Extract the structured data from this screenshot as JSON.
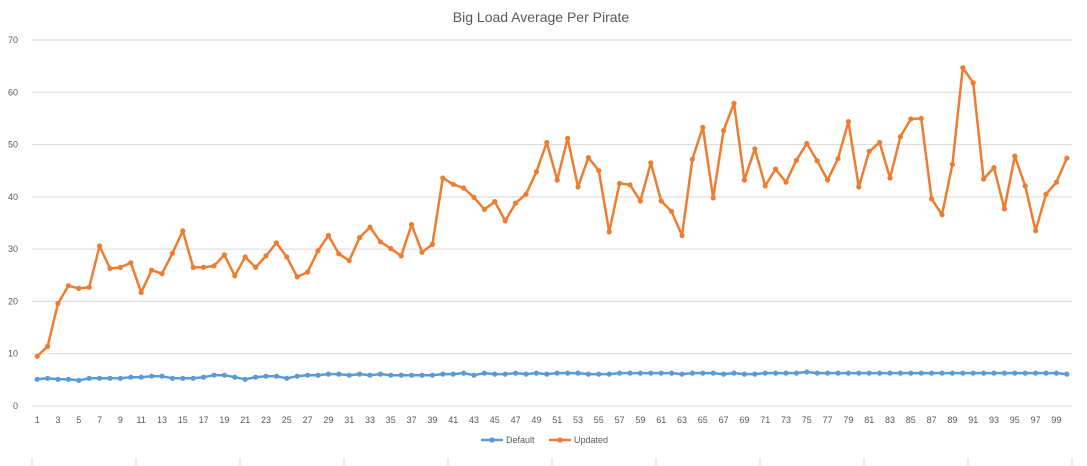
{
  "chart_data": {
    "type": "line",
    "title": "Big Load Average Per Pirate",
    "xlabel": "",
    "ylabel": "",
    "ylim": [
      0,
      70
    ],
    "yticks": [
      0,
      10,
      20,
      30,
      40,
      50,
      60,
      70
    ],
    "x_start": 1,
    "x_end": 100,
    "x_tick_labels": [
      "1",
      "3",
      "5",
      "7",
      "9",
      "11",
      "13",
      "15",
      "17",
      "19",
      "21",
      "23",
      "25",
      "27",
      "29",
      "31",
      "33",
      "35",
      "37",
      "39",
      "41",
      "43",
      "45",
      "47",
      "49",
      "51",
      "53",
      "55",
      "57",
      "59",
      "61",
      "63",
      "65",
      "67",
      "69",
      "71",
      "73",
      "75",
      "77",
      "79",
      "81",
      "83",
      "85",
      "87",
      "89",
      "91",
      "93",
      "95",
      "97",
      "99"
    ],
    "grid": true,
    "legend_position": "bottom",
    "series": [
      {
        "name": "Default",
        "color": "#5b9bd5",
        "values": [
          5.1,
          5.3,
          5.1,
          5.1,
          4.9,
          5.3,
          5.3,
          5.3,
          5.3,
          5.5,
          5.5,
          5.7,
          5.7,
          5.3,
          5.3,
          5.3,
          5.5,
          5.9,
          5.9,
          5.5,
          5.1,
          5.5,
          5.7,
          5.7,
          5.3,
          5.7,
          5.9,
          5.9,
          6.1,
          6.1,
          5.9,
          6.1,
          5.9,
          6.1,
          5.9,
          5.9,
          5.9,
          5.9,
          5.9,
          6.1,
          6.1,
          6.3,
          5.9,
          6.3,
          6.1,
          6.1,
          6.3,
          6.1,
          6.3,
          6.1,
          6.3,
          6.3,
          6.3,
          6.1,
          6.1,
          6.1,
          6.3,
          6.3,
          6.3,
          6.3,
          6.3,
          6.3,
          6.1,
          6.3,
          6.3,
          6.3,
          6.1,
          6.3,
          6.1,
          6.1,
          6.3,
          6.3,
          6.3,
          6.3,
          6.5,
          6.3,
          6.3,
          6.3,
          6.3,
          6.3,
          6.3,
          6.3,
          6.3,
          6.3,
          6.3,
          6.3,
          6.3,
          6.3,
          6.3,
          6.3,
          6.3,
          6.3,
          6.3,
          6.3,
          6.3,
          6.3,
          6.3,
          6.3,
          6.3,
          6.1
        ]
      },
      {
        "name": "Updated",
        "color": "#ed7d31",
        "values": [
          9.5,
          11.4,
          19.6,
          23.0,
          22.5,
          22.7,
          30.6,
          26.3,
          26.5,
          27.4,
          21.7,
          26.0,
          25.3,
          29.2,
          33.5,
          26.5,
          26.5,
          26.8,
          28.9,
          24.9,
          28.5,
          26.5,
          28.7,
          31.2,
          28.5,
          24.7,
          25.6,
          29.7,
          32.6,
          29.1,
          27.8,
          32.2,
          34.2,
          31.4,
          30.1,
          28.7,
          34.7,
          29.4,
          30.9,
          43.6,
          42.4,
          41.7,
          39.9,
          37.6,
          39.1,
          35.4,
          38.8,
          40.5,
          44.8,
          50.4,
          43.2,
          51.2,
          41.9,
          47.5,
          45.0,
          33.3,
          42.6,
          42.3,
          39.2,
          46.5,
          39.2,
          37.2,
          32.6,
          47.2,
          53.3,
          39.8,
          52.7,
          57.9,
          43.2,
          49.2,
          42.1,
          45.3,
          42.8,
          47.0,
          50.2,
          46.9,
          43.2,
          47.3,
          54.4,
          41.9,
          48.7,
          50.4,
          43.6,
          51.5,
          54.9,
          55.0,
          39.6,
          36.6,
          46.2,
          64.7,
          61.8,
          43.4,
          45.6,
          37.7,
          47.8,
          42.1,
          33.5,
          40.5,
          42.8,
          47.4
        ]
      }
    ]
  }
}
